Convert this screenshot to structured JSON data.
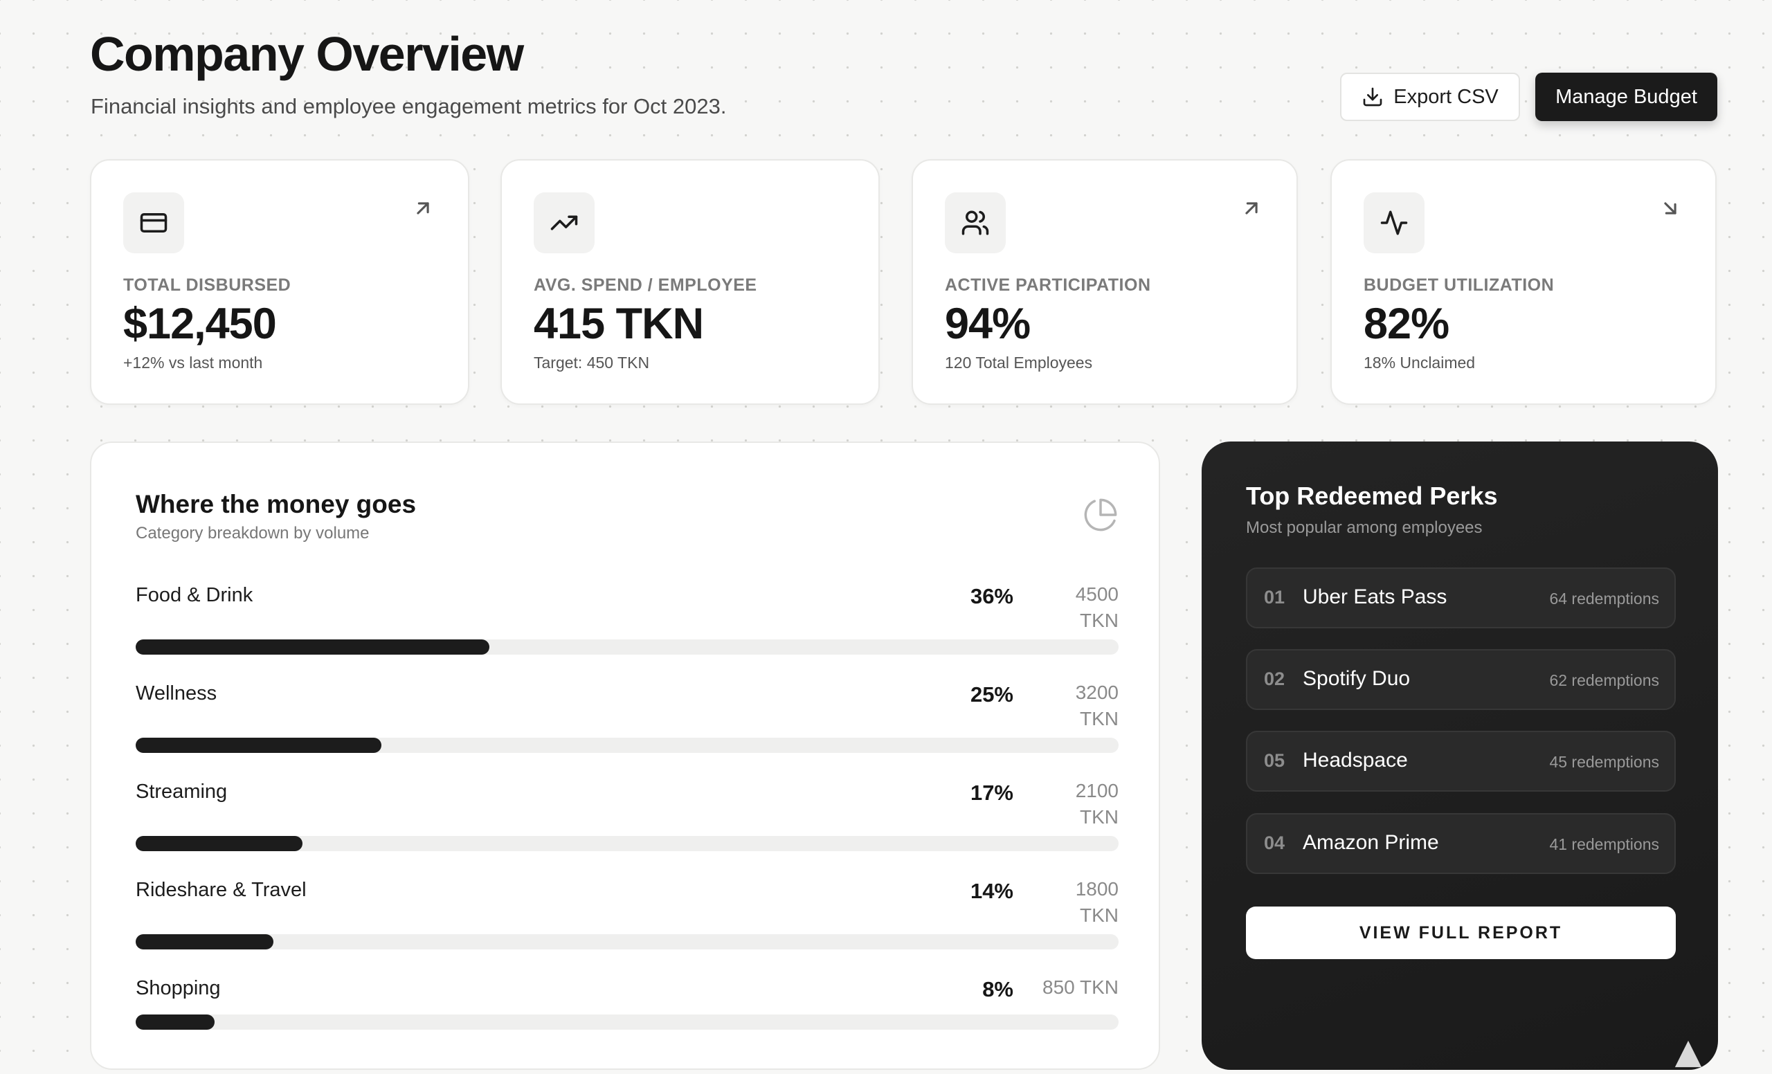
{
  "header": {
    "title": "Company Overview",
    "subtitle": "Financial insights and employee engagement metrics for Oct 2023.",
    "export_label": "Export CSV",
    "manage_label": "Manage Budget"
  },
  "stats": [
    {
      "icon": "credit-card-icon",
      "trend": "arrow-up-right-icon",
      "label": "TOTAL DISBURSED",
      "value": "$12,450",
      "sub": "+12% vs last month"
    },
    {
      "icon": "trending-up-icon",
      "trend": "",
      "label": "AVG. SPEND / EMPLOYEE",
      "value": "415 TKN",
      "sub": "Target: 450 TKN"
    },
    {
      "icon": "users-icon",
      "trend": "arrow-up-right-icon",
      "label": "ACTIVE PARTICIPATION",
      "value": "94%",
      "sub": "120 Total Employees"
    },
    {
      "icon": "activity-icon",
      "trend": "arrow-down-right-icon",
      "label": "BUDGET UTILIZATION",
      "value": "82%",
      "sub": "18% Unclaimed"
    }
  ],
  "categories": {
    "title": "Where the money goes",
    "subtitle": "Category breakdown by volume",
    "items": [
      {
        "name": "Food & Drink",
        "pct_label": "36%",
        "pct": 36,
        "tkn": "4500 TKN"
      },
      {
        "name": "Wellness",
        "pct_label": "25%",
        "pct": 25,
        "tkn": "3200 TKN"
      },
      {
        "name": "Streaming",
        "pct_label": "17%",
        "pct": 17,
        "tkn": "2100 TKN"
      },
      {
        "name": "Rideshare & Travel",
        "pct_label": "14%",
        "pct": 14,
        "tkn": "1800 TKN"
      },
      {
        "name": "Shopping",
        "pct_label": "8%",
        "pct": 8,
        "tkn": "850 TKN"
      }
    ]
  },
  "perks": {
    "title": "Top Redeemed Perks",
    "subtitle": "Most popular among employees",
    "items": [
      {
        "rank": "01",
        "name": "Uber Eats Pass",
        "count": "64 redemptions"
      },
      {
        "rank": "02",
        "name": "Spotify Duo",
        "count": "62 redemptions"
      },
      {
        "rank": "05",
        "name": "Headspace",
        "count": "45 redemptions"
      },
      {
        "rank": "04",
        "name": "Amazon Prime",
        "count": "41 redemptions"
      }
    ],
    "button_label": "VIEW FULL REPORT"
  },
  "colors": {
    "accent": "#1b1b1b",
    "dark_panel": "#1f1f1f",
    "track": "#efefee"
  }
}
